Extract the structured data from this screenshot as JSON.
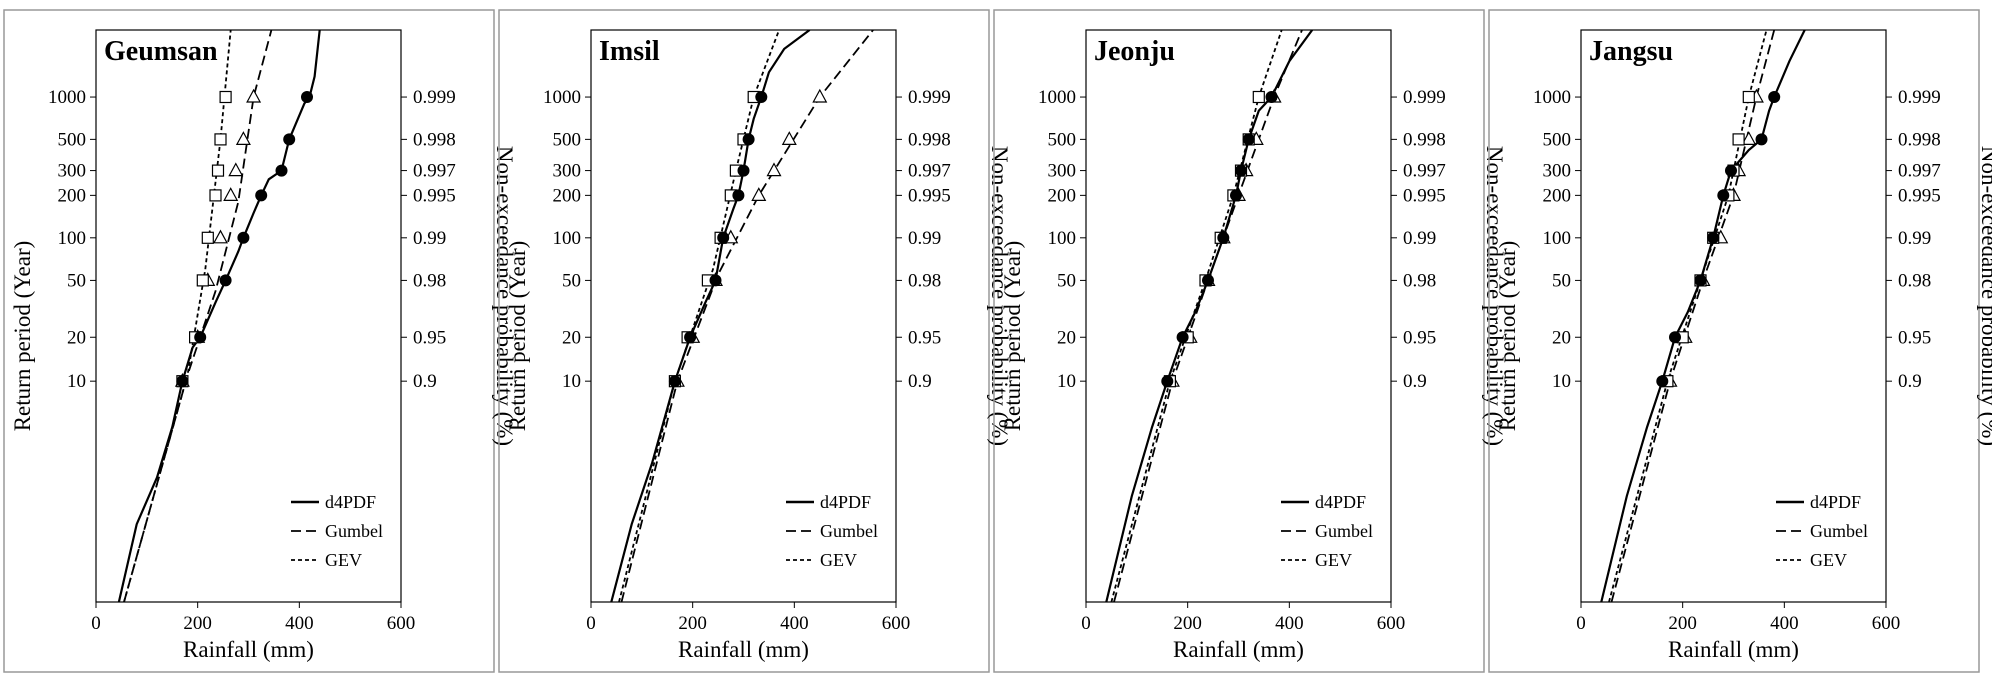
{
  "chart_data": {
    "type": "line",
    "axes_common": {
      "xlabel": "Rainfall (mm)",
      "ylabel": "Return period (Year)",
      "y2label": "Non-exceedance probability (%)",
      "xlim": [
        0,
        600
      ],
      "xticks": [
        "0",
        "200",
        "400",
        "600"
      ],
      "y_left_ticks": [
        "10",
        "20",
        "50",
        "100",
        "200",
        "300",
        "500",
        "1000"
      ],
      "y_right_ticks": [
        "0.9",
        "0.95",
        "0.98",
        "0.99",
        "0.995",
        "0.997",
        "0.998",
        "0.999"
      ],
      "y_scale": "gumbel reduced variate",
      "legend": [
        "d4PDF",
        "Gumbel",
        "GEV"
      ],
      "legend_position": "bottom-right"
    },
    "return_periods": [
      10,
      20,
      50,
      100,
      200,
      300,
      500,
      1000
    ],
    "panels": [
      {
        "title": "Geumsan",
        "d4pdf_markers": [
          170,
          205,
          255,
          290,
          325,
          365,
          380,
          415
        ],
        "gumbel_markers": [
          170,
          200,
          220,
          245,
          265,
          275,
          290,
          310
        ],
        "gev_markers": [
          170,
          195,
          210,
          220,
          235,
          240,
          245,
          255
        ],
        "d4pdf_curve": [
          [
            45,
            1.02
          ],
          [
            80,
            1.5
          ],
          [
            120,
            2.5
          ],
          [
            150,
            5
          ],
          [
            170,
            10
          ],
          [
            190,
            17
          ],
          [
            205,
            20
          ],
          [
            235,
            35
          ],
          [
            255,
            50
          ],
          [
            280,
            80
          ],
          [
            290,
            100
          ],
          [
            310,
            150
          ],
          [
            325,
            200
          ],
          [
            340,
            260
          ],
          [
            365,
            300
          ],
          [
            380,
            500
          ],
          [
            410,
            900
          ],
          [
            420,
            1000
          ],
          [
            430,
            1400
          ],
          [
            440,
            3000
          ]
        ],
        "gumbel_curve": [
          [
            55,
            1.02
          ],
          [
            180,
            11
          ],
          [
            235,
            42
          ],
          [
            280,
            180
          ],
          [
            310,
            1000
          ],
          [
            345,
            3000
          ]
        ],
        "gev_curve": [
          [
            55,
            1.02
          ],
          [
            180,
            11
          ],
          [
            215,
            60
          ],
          [
            245,
            500
          ],
          [
            265,
            3000
          ]
        ]
      },
      {
        "title": "Imsil",
        "d4pdf_markers": [
          165,
          195,
          245,
          260,
          290,
          300,
          310,
          335
        ],
        "gumbel_markers": [
          170,
          200,
          245,
          275,
          330,
          360,
          390,
          450
        ],
        "gev_markers": [
          165,
          190,
          230,
          255,
          275,
          285,
          300,
          320
        ],
        "d4pdf_curve": [
          [
            40,
            1.02
          ],
          [
            80,
            1.5
          ],
          [
            120,
            3
          ],
          [
            165,
            10
          ],
          [
            195,
            20
          ],
          [
            225,
            35
          ],
          [
            245,
            50
          ],
          [
            260,
            100
          ],
          [
            280,
            160
          ],
          [
            290,
            200
          ],
          [
            300,
            300
          ],
          [
            310,
            500
          ],
          [
            320,
            700
          ],
          [
            335,
            1000
          ],
          [
            350,
            1500
          ],
          [
            380,
            2200
          ],
          [
            430,
            3000
          ]
        ],
        "gumbel_curve": [
          [
            60,
            1.02
          ],
          [
            170,
            10
          ],
          [
            250,
            55
          ],
          [
            330,
            200
          ],
          [
            450,
            1000
          ],
          [
            555,
            3000
          ]
        ],
        "gev_curve": [
          [
            55,
            1.02
          ],
          [
            165,
            10
          ],
          [
            240,
            60
          ],
          [
            285,
            300
          ],
          [
            320,
            1000
          ],
          [
            370,
            3000
          ]
        ]
      },
      {
        "title": "Jeonju",
        "d4pdf_markers": [
          160,
          190,
          240,
          270,
          295,
          305,
          320,
          365
        ],
        "gumbel_markers": [
          170,
          205,
          240,
          270,
          300,
          315,
          335,
          370
        ],
        "gev_markers": [
          165,
          200,
          235,
          265,
          290,
          305,
          320,
          340
        ],
        "d4pdf_curve": [
          [
            40,
            1.02
          ],
          [
            90,
            2
          ],
          [
            130,
            5
          ],
          [
            160,
            10
          ],
          [
            190,
            20
          ],
          [
            215,
            30
          ],
          [
            240,
            50
          ],
          [
            270,
            100
          ],
          [
            295,
            200
          ],
          [
            305,
            300
          ],
          [
            320,
            500
          ],
          [
            340,
            800
          ],
          [
            365,
            1000
          ],
          [
            400,
            1800
          ],
          [
            445,
            3000
          ]
        ],
        "gumbel_curve": [
          [
            55,
            1.02
          ],
          [
            170,
            10
          ],
          [
            240,
            50
          ],
          [
            300,
            200
          ],
          [
            370,
            1000
          ],
          [
            425,
            3000
          ]
        ],
        "gev_curve": [
          [
            50,
            1.02
          ],
          [
            165,
            10
          ],
          [
            235,
            50
          ],
          [
            290,
            200
          ],
          [
            340,
            1000
          ],
          [
            385,
            3000
          ]
        ]
      },
      {
        "title": "Jangsu",
        "d4pdf_markers": [
          160,
          185,
          235,
          260,
          280,
          295,
          355,
          380
        ],
        "gumbel_markers": [
          175,
          205,
          240,
          275,
          300,
          310,
          330,
          345
        ],
        "gev_markers": [
          170,
          200,
          235,
          260,
          290,
          300,
          310,
          330
        ],
        "d4pdf_curve": [
          [
            40,
            1.02
          ],
          [
            90,
            2
          ],
          [
            130,
            5
          ],
          [
            160,
            10
          ],
          [
            185,
            20
          ],
          [
            210,
            30
          ],
          [
            235,
            50
          ],
          [
            260,
            100
          ],
          [
            280,
            200
          ],
          [
            295,
            300
          ],
          [
            330,
            420
          ],
          [
            355,
            500
          ],
          [
            370,
            800
          ],
          [
            380,
            1000
          ],
          [
            410,
            1800
          ],
          [
            440,
            3000
          ]
        ],
        "gumbel_curve": [
          [
            60,
            1.02
          ],
          [
            175,
            10
          ],
          [
            240,
            50
          ],
          [
            300,
            200
          ],
          [
            345,
            1000
          ],
          [
            380,
            3000
          ]
        ],
        "gev_curve": [
          [
            55,
            1.02
          ],
          [
            170,
            10
          ],
          [
            235,
            50
          ],
          [
            290,
            200
          ],
          [
            330,
            1000
          ],
          [
            365,
            3000
          ]
        ]
      }
    ]
  }
}
